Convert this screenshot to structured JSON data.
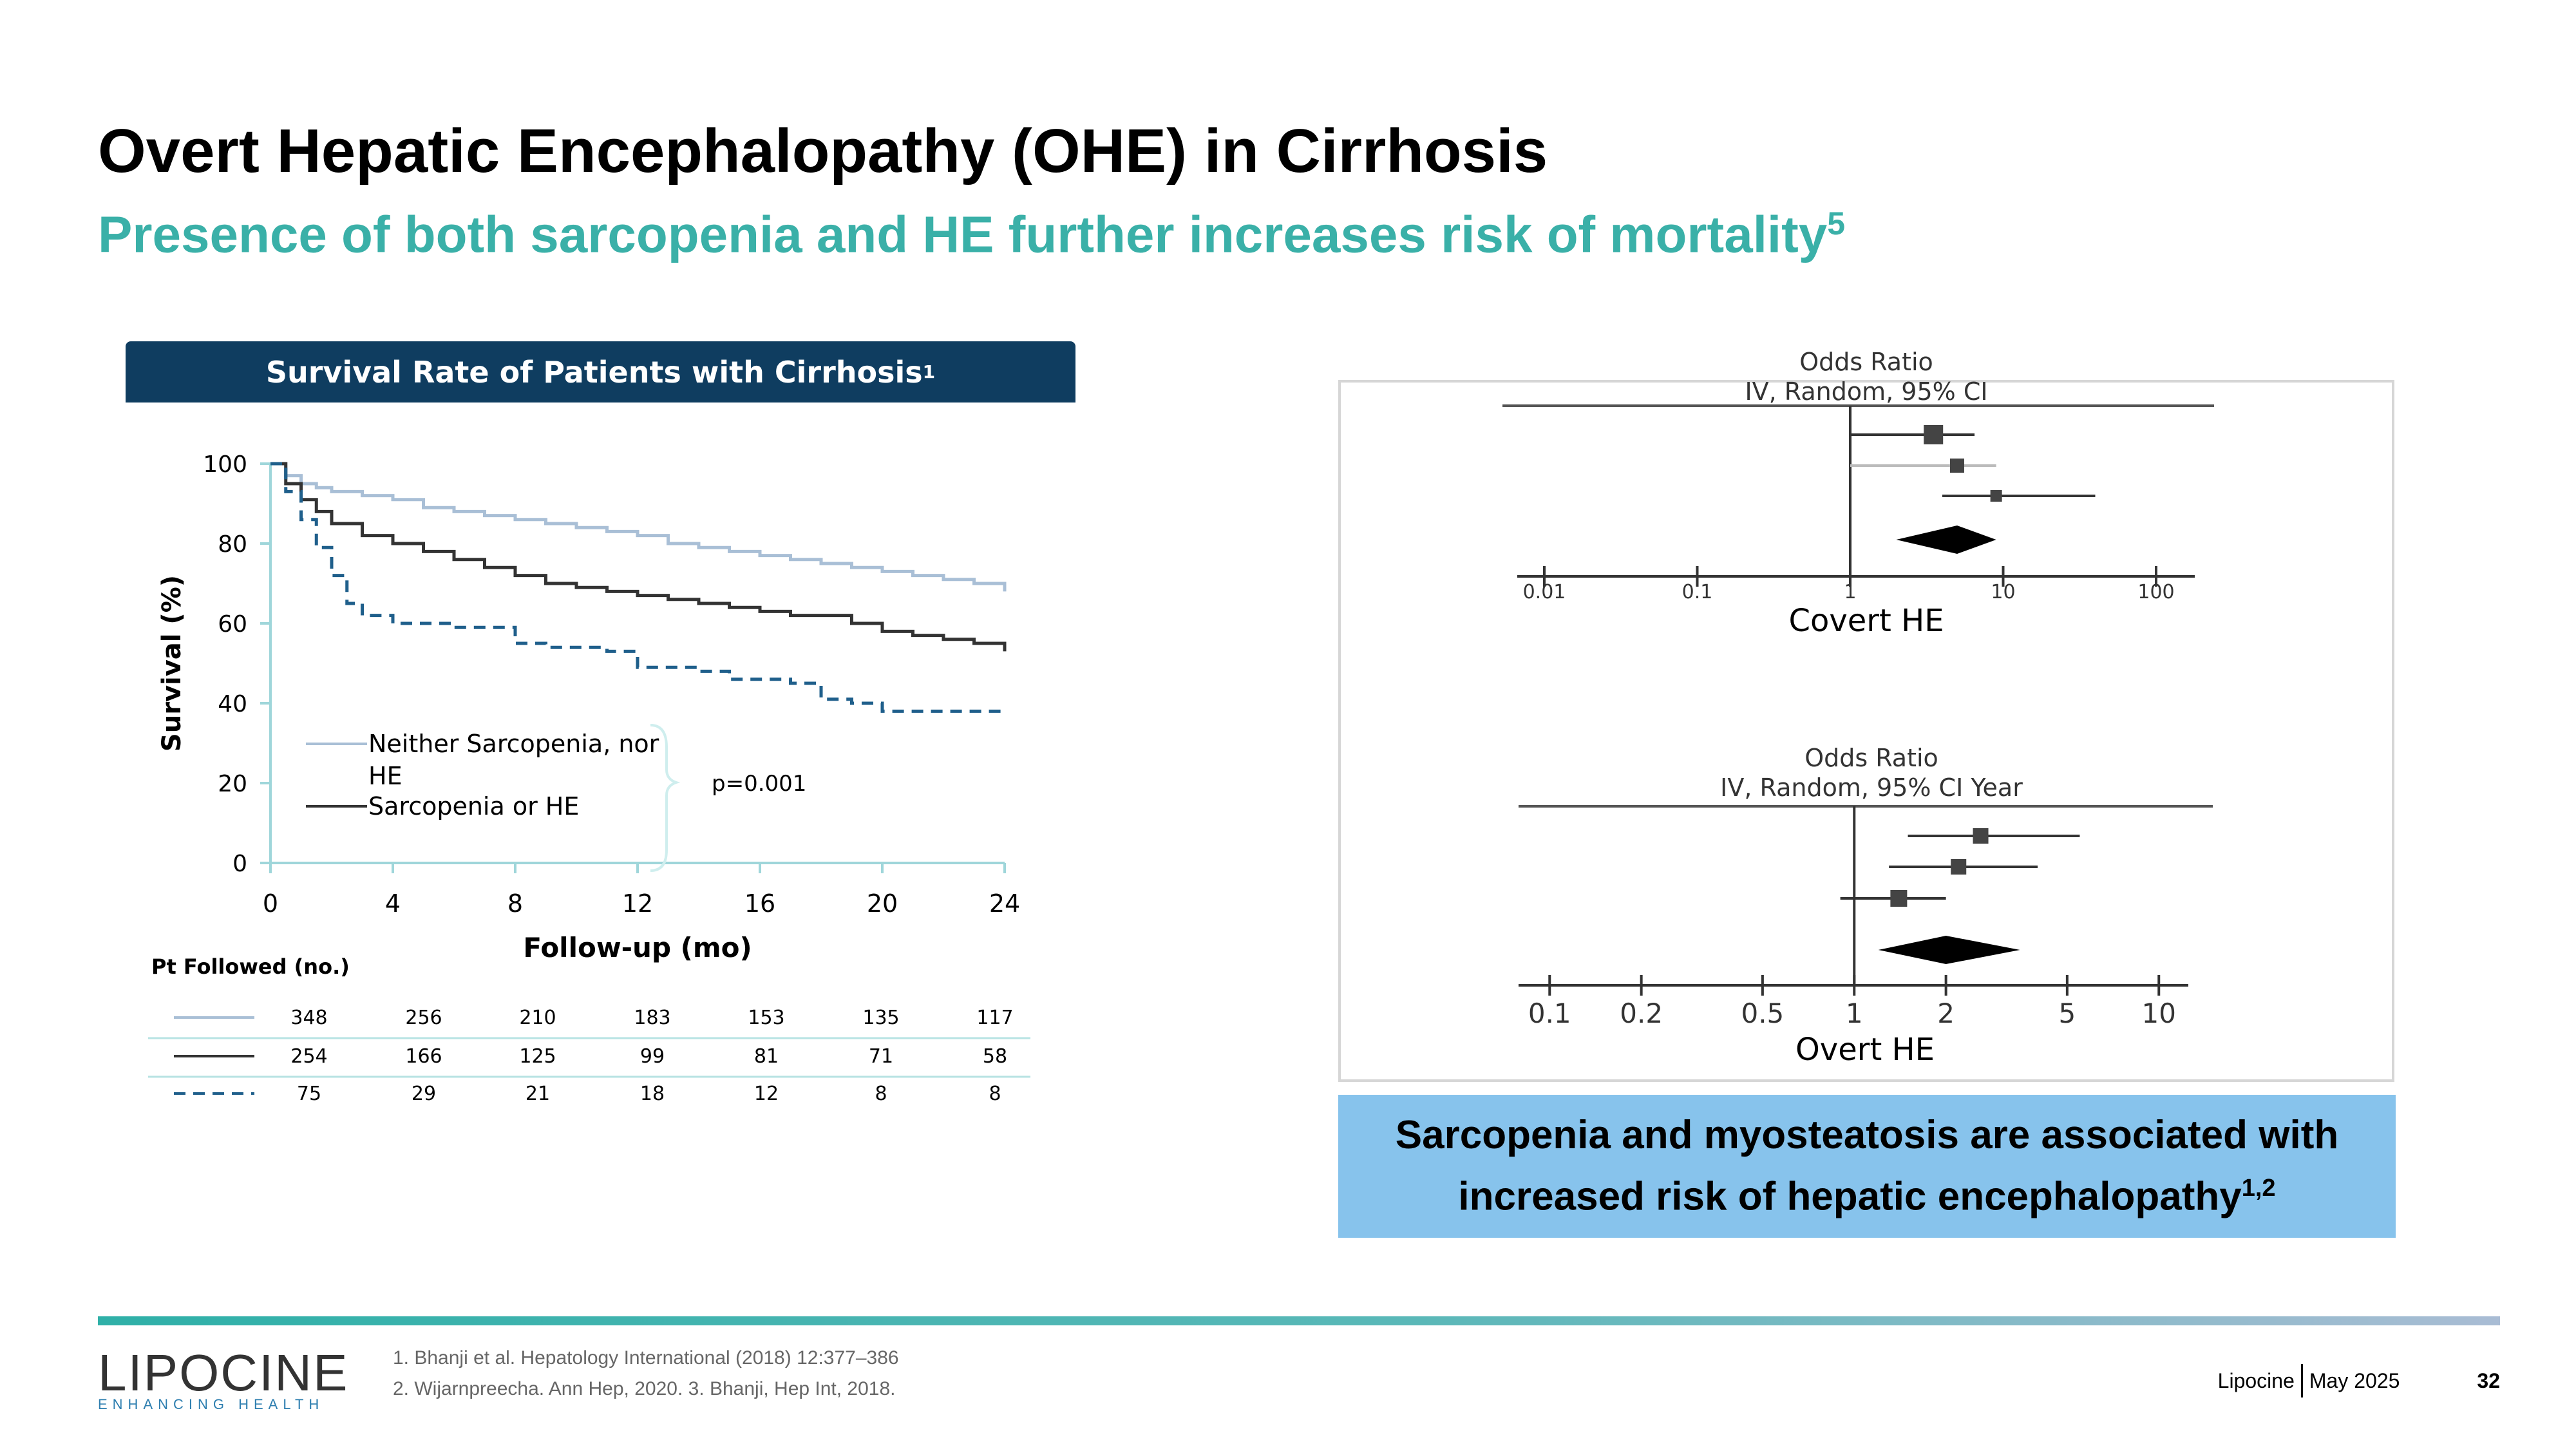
{
  "slide": {
    "title": "Overt Hepatic Encephalopathy (OHE) in Cirrhosis",
    "subtitle": "Presence of both sarcopenia and HE further increases risk of mortality",
    "subtitle_sup": "5"
  },
  "survival_header": {
    "text": "Survival Rate of Patients with Cirrhosis",
    "sup": "1"
  },
  "chart_data": [
    {
      "type": "line",
      "ylabel": "Survival (%)",
      "xlabel": "Follow-up (mo)",
      "xlim": [
        0,
        24
      ],
      "ylim": [
        0,
        100
      ],
      "xticks": [
        "0",
        "4",
        "8",
        "12",
        "16",
        "20",
        "24"
      ],
      "yticks": [
        "0",
        "20",
        "40",
        "60",
        "80",
        "100"
      ],
      "annotation": "p=0.001",
      "legend_position": "bottom-left",
      "series": [
        {
          "name": "Neither Sarcopenia, nor HE",
          "color": "#a9bfd6",
          "style": "solid",
          "x": [
            0,
            0.5,
            1,
            1.5,
            2,
            3,
            4,
            5,
            6,
            7,
            8,
            9,
            10,
            11,
            12,
            13,
            14,
            15,
            16,
            17,
            18,
            19,
            20,
            21,
            22,
            23,
            24
          ],
          "y": [
            100,
            97,
            95,
            94,
            93,
            92,
            91,
            89,
            88,
            87,
            86,
            85,
            84,
            83,
            82,
            80,
            79,
            78,
            77,
            76,
            75,
            74,
            73,
            72,
            71,
            70,
            68
          ]
        },
        {
          "name": "Sarcopenia or HE",
          "color": "#333333",
          "style": "solid",
          "x": [
            0,
            0.5,
            1,
            1.5,
            2,
            3,
            4,
            5,
            6,
            7,
            8,
            9,
            10,
            11,
            12,
            13,
            14,
            15,
            16,
            17,
            18,
            19,
            20,
            21,
            22,
            23,
            24
          ],
          "y": [
            100,
            95,
            91,
            88,
            85,
            82,
            80,
            78,
            76,
            74,
            72,
            70,
            69,
            68,
            67,
            66,
            65,
            64,
            63,
            62,
            62,
            60,
            58,
            57,
            56,
            55,
            53
          ]
        },
        {
          "name": "",
          "color": "#1f5f8b",
          "style": "dashed",
          "x": [
            0,
            0.5,
            1,
            1.5,
            2,
            2.5,
            3,
            4,
            5,
            6,
            7,
            8,
            9,
            10,
            11,
            12,
            13,
            14,
            15,
            16,
            17,
            18,
            19,
            20,
            21,
            22,
            23,
            24
          ],
          "y": [
            100,
            93,
            86,
            79,
            72,
            65,
            62,
            60,
            60,
            59,
            59,
            55,
            54,
            54,
            53,
            49,
            49,
            48,
            46,
            46,
            45,
            41,
            40,
            38,
            38,
            38,
            38,
            38
          ]
        }
      ],
      "at_risk": {
        "label": "Pt Followed (no.)",
        "rows": [
          [
            "348",
            "256",
            "210",
            "183",
            "153",
            "135",
            "117"
          ],
          [
            "254",
            "166",
            "125",
            "99",
            "81",
            "71",
            "58"
          ],
          [
            "75",
            "29",
            "21",
            "18",
            "12",
            "8",
            "8"
          ]
        ]
      }
    },
    {
      "type": "scatter",
      "subtype": "forest",
      "title": "Odds Ratio",
      "subtitle": "IV, Random, 95% CI",
      "scale": "log",
      "xlim": [
        0.01,
        100
      ],
      "xticks": [
        "0.01",
        "0.1",
        "1",
        "10",
        "100"
      ],
      "xlabel": "Covert HE",
      "studies": [
        {
          "or": 3.5,
          "lo": 1.0,
          "hi": 6.5
        },
        {
          "or": 5.0,
          "lo": 1.0,
          "hi": 9.0
        },
        {
          "or": 9.0,
          "lo": 4.0,
          "hi": 40.0
        }
      ],
      "pooled": {
        "or": 5.0,
        "lo": 2.0,
        "hi": 9.0
      }
    },
    {
      "type": "scatter",
      "subtype": "forest",
      "title": "Odds Ratio",
      "subtitle": "IV, Random, 95% CI Year",
      "scale": "log",
      "xlim": [
        0.07,
        18
      ],
      "xticks": [
        "0.1",
        "0.2",
        "0.5",
        "1",
        "2",
        "5",
        "10"
      ],
      "xlabel": "Overt HE",
      "studies": [
        {
          "or": 2.6,
          "lo": 1.5,
          "hi": 5.5
        },
        {
          "or": 2.2,
          "lo": 1.3,
          "hi": 4.0
        },
        {
          "or": 1.4,
          "lo": 0.9,
          "hi": 2.0
        }
      ],
      "pooled": {
        "or": 2.0,
        "lo": 1.2,
        "hi": 3.5
      }
    }
  ],
  "callout": {
    "line1": "Sarcopenia and myosteatosis are associated with",
    "line2": "increased risk of hepatic encephalopathy",
    "sup": "1,2"
  },
  "footer": {
    "logo": "LIPOCINE",
    "tagline": "ENHANCING HEALTH",
    "ref1": "1. Bhanji et al. Hepatology International (2018) 12:377–386",
    "ref2": "2. Wijarnpreecha. Ann Hep, 2020. 3. Bhanji, Hep Int, 2018.",
    "company": "Lipocine",
    "date": "May 2025",
    "page": "32"
  },
  "colors": {
    "teal": "#3ab0a8",
    "navy": "#0f3d60",
    "callout": "#87c3ec"
  }
}
